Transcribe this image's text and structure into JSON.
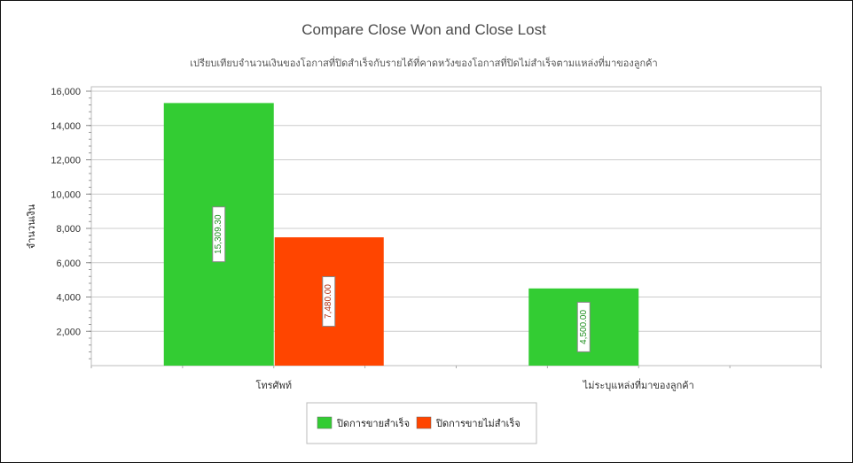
{
  "chart_data": {
    "type": "bar",
    "title": "Compare Close Won and Close Lost",
    "subtitle": "เปรียบเทียบจำนวนเงินของโอกาสที่ปิดสำเร็จกับรายได้ที่คาดหวังของโอกาสที่ปิดไม่สำเร็จตามแหล่งที่มาของลูกค้า",
    "xlabel": "",
    "ylabel": "จำนวนเงิน",
    "ylim": [
      0,
      16000
    ],
    "yticks": [
      2000,
      4000,
      6000,
      8000,
      10000,
      12000,
      14000,
      16000
    ],
    "ytick_labels": [
      "2,000",
      "4,000",
      "6,000",
      "8,000",
      "10,000",
      "12,000",
      "14,000",
      "16,000"
    ],
    "categories": [
      "โทรศัพท์",
      "ไม่ระบุแหล่งที่มาของลูกค้า"
    ],
    "series": [
      {
        "name": "ปิดการขายสำเร็จ",
        "color": "#33cc33",
        "values": [
          15309.3,
          4500.0
        ],
        "labels": [
          "15,309.30",
          "4,500.00"
        ]
      },
      {
        "name": "ปิดการขายไม่สำเร็จ",
        "color": "#ff4500",
        "values": [
          7480.0,
          0
        ],
        "labels": [
          "7,480.00",
          ""
        ]
      }
    ],
    "grid": true,
    "legend_position": "bottom"
  }
}
